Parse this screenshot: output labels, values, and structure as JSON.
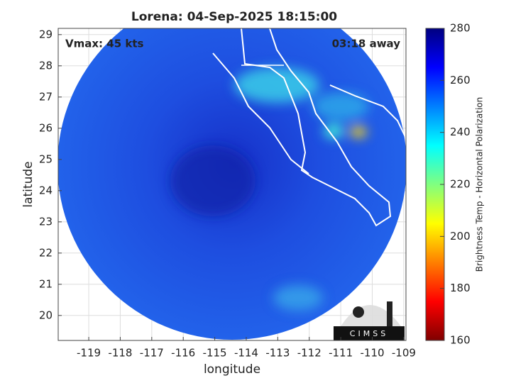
{
  "chart_data": {
    "type": "map",
    "title": "Lorena: 04-Sep-2025 18:15:00",
    "annotations": [
      "Vmax: 45 kts",
      "03:18 away"
    ],
    "xlabel": "longitude",
    "ylabel": "latitude",
    "xlim": [
      -119.97,
      -108.93
    ],
    "ylim": [
      19.2,
      29.2
    ],
    "xticks": [
      -119,
      -118,
      -117,
      -116,
      -115,
      -114,
      -113,
      -112,
      -111,
      -110,
      -109
    ],
    "yticks": [
      20,
      21,
      22,
      23,
      24,
      25,
      26,
      27,
      28,
      29
    ],
    "grid": true,
    "colorbar": {
      "label": "Brightness Temp - Horizontal Polarization",
      "clim": [
        160,
        280
      ],
      "ticks": [
        160,
        180,
        200,
        220,
        240,
        260,
        280
      ],
      "colormap": "jet"
    },
    "logo": "CIMSS"
  }
}
